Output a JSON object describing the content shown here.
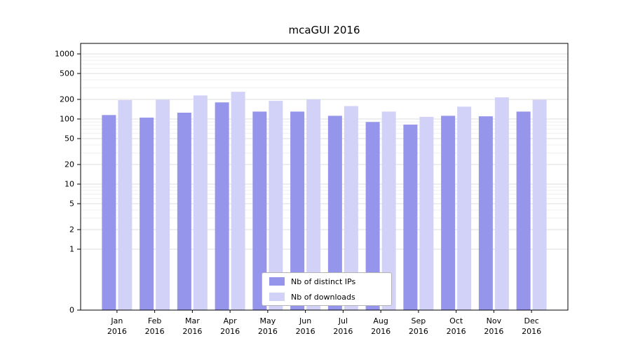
{
  "chart_data": {
    "type": "bar",
    "title": "mcaGUI 2016",
    "categories": [
      "Jan",
      "Feb",
      "Mar",
      "Apr",
      "May",
      "Jun",
      "Jul",
      "Aug",
      "Sep",
      "Oct",
      "Nov",
      "Dec"
    ],
    "year": "2016",
    "series": [
      {
        "name": "Nb of distinct IPs",
        "color": "#9595ec",
        "values": [
          115,
          105,
          125,
          180,
          130,
          130,
          112,
          90,
          82,
          112,
          110,
          130
        ]
      },
      {
        "name": "Nb of downloads",
        "color": "#d2d2f8",
        "values": [
          195,
          197,
          230,
          262,
          190,
          200,
          158,
          130,
          108,
          155,
          215,
          197
        ]
      }
    ],
    "yscale": "symlog",
    "yticks": [
      0,
      1,
      2,
      5,
      10,
      20,
      50,
      100,
      200,
      500,
      1000
    ],
    "ylim": [
      0,
      1000
    ],
    "grid": "horizontal",
    "legend_position": "lower center",
    "colors": {
      "axis": "#000000",
      "grid_major": "#dcdcdc",
      "grid_minor": "#efefef"
    }
  }
}
